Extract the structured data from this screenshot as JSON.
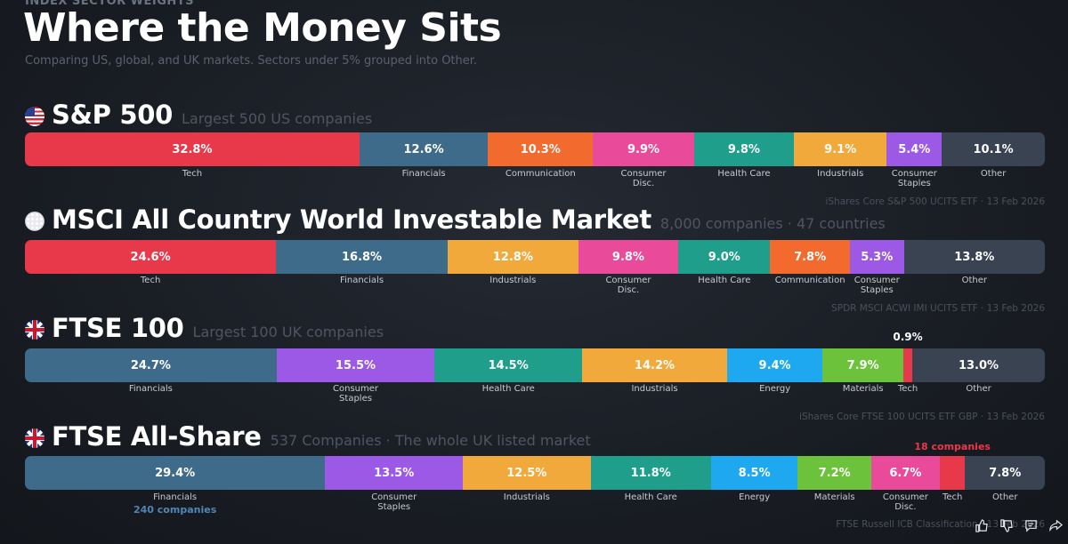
{
  "header": {
    "eyebrow": "INDEX SECTOR WEIGHTS",
    "title": "Where the Money Sits",
    "subtitle": "Comparing US, global, and UK markets. Sectors under 5% grouped into Other."
  },
  "colors": {
    "Tech": "#e8394a",
    "Financials": "#3f6b8a",
    "Communication": "#f26a2e",
    "Consumer Disc.": "#e94b9a",
    "Health Care": "#1f9e8c",
    "Industrials": "#f2a93b",
    "Consumer Staples": "#9b59e6",
    "Energy": "#1ea8f0",
    "Materials": "#6cc23a",
    "Other": "#3a4352"
  },
  "chart_data": [
    {
      "type": "bar",
      "name": "S&P 500",
      "description": "Largest 500 US companies",
      "flag": "us-flag-icon",
      "source": "iShares Core S&P 500 UCITS ETF · 13 Feb 2026",
      "categories": [
        "Tech",
        "Financials",
        "Communication",
        "Consumer Disc.",
        "Health Care",
        "Industrials",
        "Consumer Staples",
        "Other"
      ],
      "values": [
        32.8,
        12.6,
        10.3,
        9.9,
        9.8,
        9.1,
        5.4,
        10.1
      ],
      "value_labels": [
        "32.8%",
        "12.6%",
        "10.3%",
        "9.9%",
        "9.8%",
        "9.1%",
        "5.4%",
        "10.1%"
      ],
      "unit": "%"
    },
    {
      "type": "bar",
      "name": "MSCI All Country World Investable Market",
      "description": "8,000 companies · 47 countries",
      "flag": "globe-icon",
      "source": "SPDR MSCI ACWI IMI UCITS ETF · 13 Feb 2026",
      "categories": [
        "Tech",
        "Financials",
        "Industrials",
        "Consumer Disc.",
        "Health Care",
        "Communication",
        "Consumer Staples",
        "Other"
      ],
      "values": [
        24.6,
        16.8,
        12.8,
        9.8,
        9.0,
        7.8,
        5.3,
        13.8
      ],
      "value_labels": [
        "24.6%",
        "16.8%",
        "12.8%",
        "9.8%",
        "9.0%",
        "7.8%",
        "5.3%",
        "13.8%"
      ],
      "unit": "%"
    },
    {
      "type": "bar",
      "name": "FTSE 100",
      "description": "Largest 100 UK companies",
      "flag": "uk-flag-icon",
      "source": "iShares Core FTSE 100 UCITS ETF GBP · 13 Feb 2026",
      "categories": [
        "Financials",
        "Consumer Staples",
        "Health Care",
        "Industrials",
        "Energy",
        "Materials",
        "Tech",
        "Other"
      ],
      "values": [
        24.7,
        15.5,
        14.5,
        14.2,
        9.4,
        7.9,
        0.9,
        13.0
      ],
      "value_labels": [
        "24.7%",
        "15.5%",
        "14.5%",
        "14.2%",
        "9.4%",
        "7.9%",
        "0.9%",
        "13.0%"
      ],
      "unit": "%",
      "callouts": [
        {
          "text": "0.9%",
          "sector": "Tech",
          "color": "#ffffff"
        }
      ]
    },
    {
      "type": "bar",
      "name": "FTSE All-Share",
      "description": "537 Companies · The whole UK listed market",
      "flag": "uk-flag-icon",
      "source": "FTSE Russell ICB Classification · 13 Feb 2026",
      "categories": [
        "Financials",
        "Consumer Staples",
        "Industrials",
        "Health Care",
        "Energy",
        "Materials",
        "Consumer Disc.",
        "Tech",
        "Other"
      ],
      "values": [
        29.4,
        13.5,
        12.5,
        11.8,
        8.5,
        7.2,
        6.7,
        2.5,
        7.8
      ],
      "value_labels": [
        "29.4%",
        "13.5%",
        "12.5%",
        "11.8%",
        "8.5%",
        "7.2%",
        "6.7%",
        "2.5%",
        "7.8%"
      ],
      "unit": "%",
      "callouts": [
        {
          "text": "18 companies",
          "sector": "Tech",
          "color": "#e8394a"
        },
        {
          "text": "240 companies",
          "sector": "Financials",
          "color": "#4f86b8"
        }
      ]
    }
  ],
  "player_controls": [
    "thumbs-up-icon",
    "thumbs-down-icon",
    "comment-icon",
    "share-icon"
  ]
}
